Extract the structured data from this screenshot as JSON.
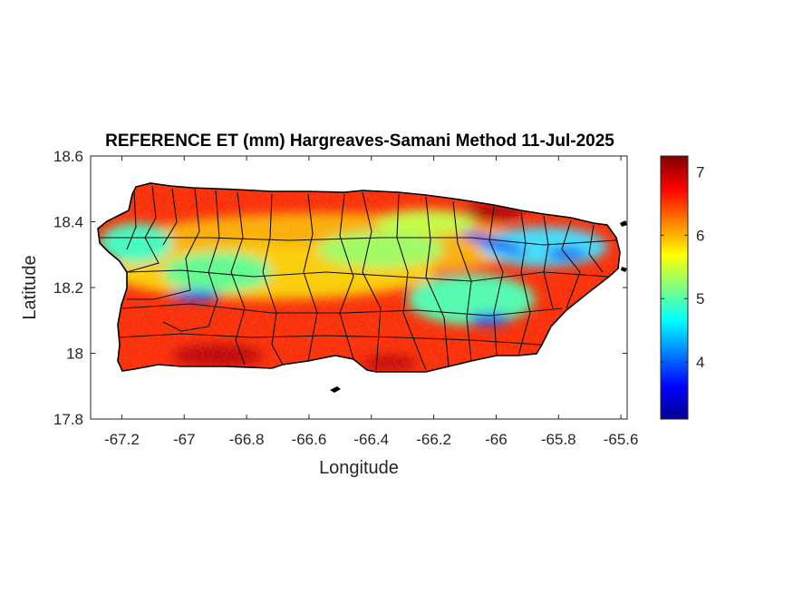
{
  "figure": {
    "title": "REFERENCE ET (mm) Hargreaves-Samani Method  11-Jul-2025"
  },
  "axes": {
    "xlabel": "Longitude",
    "ylabel": "Latitude",
    "xlim": [
      -67.3,
      -65.58
    ],
    "ylim": [
      17.8,
      18.6
    ],
    "xticks": [
      "-67.2",
      "-67",
      "-66.8",
      "-66.6",
      "-66.4",
      "-66.2",
      "-66",
      "-65.8",
      "-65.6"
    ],
    "yticks": [
      "18.6",
      "18.4",
      "18.2",
      "18",
      "17.8"
    ]
  },
  "colorbar": {
    "colormap": "jet",
    "range": [
      3.1,
      7.25
    ],
    "ticks": [
      "7",
      "6",
      "5",
      "4"
    ]
  },
  "chart_data": {
    "type": "heatmap",
    "title": "REFERENCE ET (mm) Hargreaves-Samani Method  11-Jul-2025",
    "xlabel": "Longitude",
    "ylabel": "Latitude",
    "xlim": [
      -67.3,
      -65.58
    ],
    "ylim": [
      17.8,
      18.6
    ],
    "color_range": [
      3.1,
      7.25
    ],
    "colormap": "jet",
    "grid": false
  }
}
